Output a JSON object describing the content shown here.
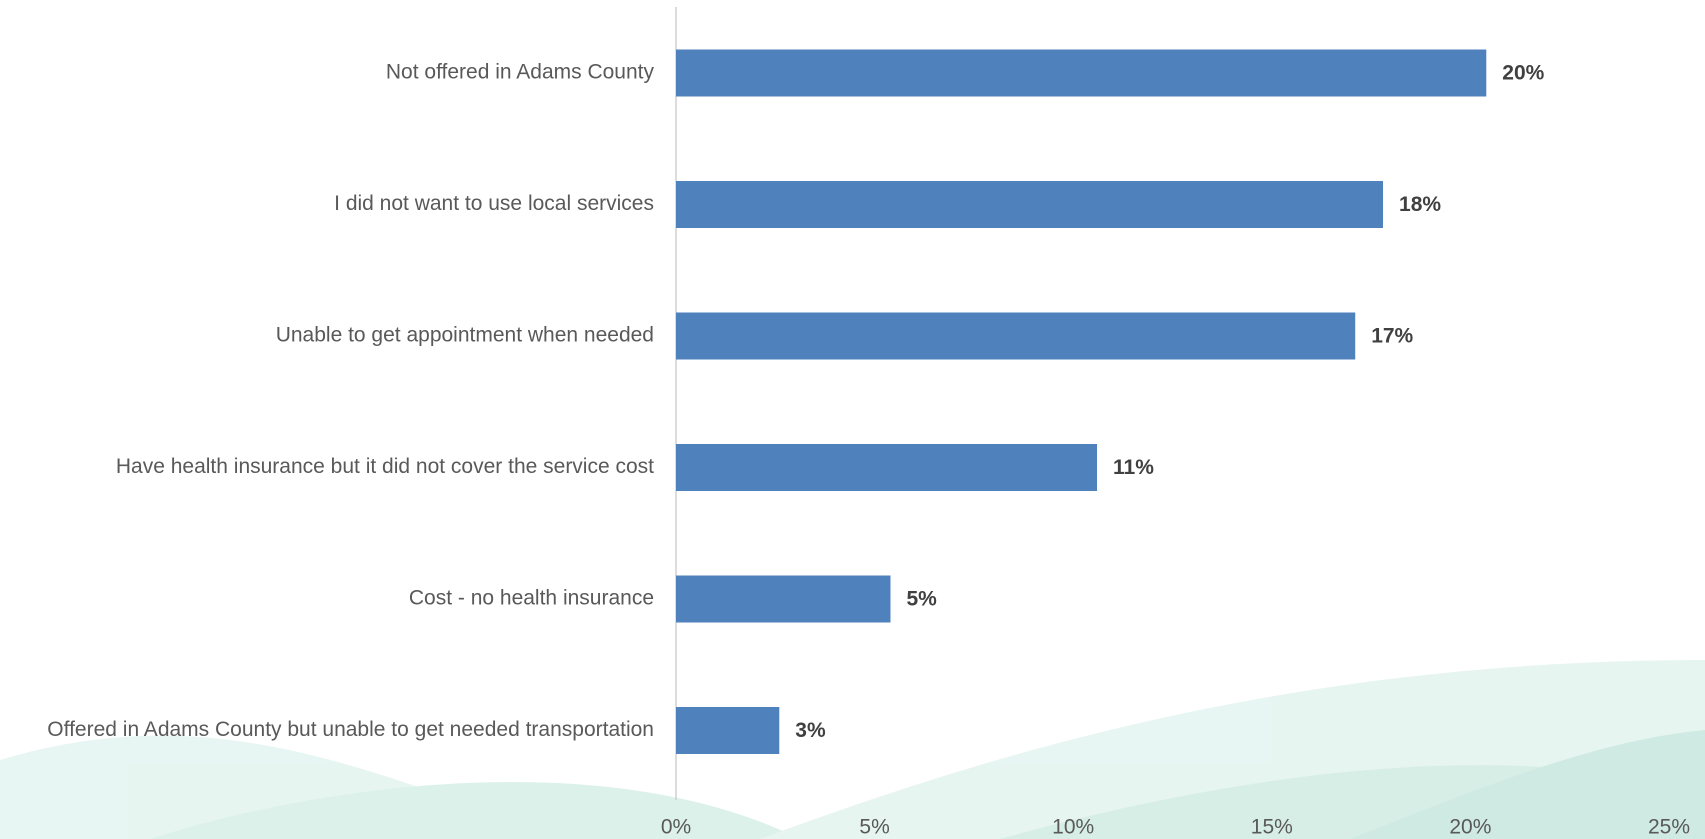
{
  "chart_data": {
    "type": "bar",
    "orientation": "horizontal",
    "categories": [
      "Not offered in Adams County",
      "I did not want to use local services",
      "Unable to get appointment when needed",
      "Have health insurance but it did not cover the service cost",
      "Cost - no health insurance",
      "Offered in Adams County but unable to get needed transportation"
    ],
    "values": [
      20.4,
      17.8,
      17.1,
      10.6,
      5.4,
      2.6
    ],
    "value_labels": [
      "20%",
      "18%",
      "17%",
      "11%",
      "5%",
      "3%"
    ],
    "color": "#4f81bd",
    "xlim": [
      0,
      25
    ],
    "xticks": [
      {
        "value": 0,
        "label": "0%"
      },
      {
        "value": 5,
        "label": "5%"
      },
      {
        "value": 10,
        "label": "10%"
      },
      {
        "value": 15,
        "label": "15%"
      },
      {
        "value": 20,
        "label": "20%"
      },
      {
        "value": 25,
        "label": "25%"
      }
    ]
  }
}
